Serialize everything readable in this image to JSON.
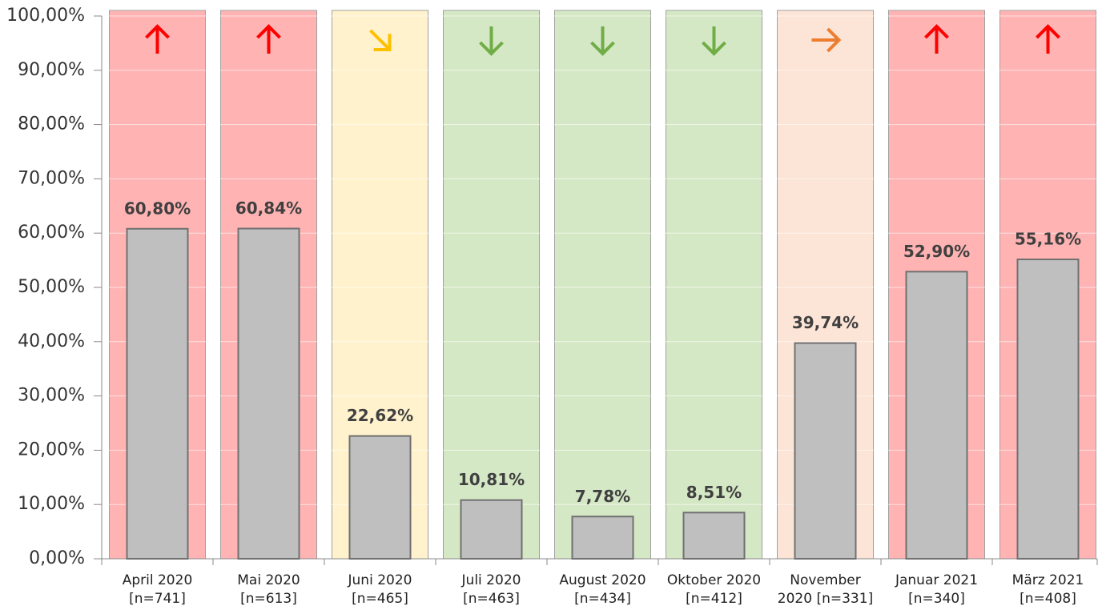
{
  "chart_data": {
    "type": "bar",
    "categories": [
      [
        "April 2020",
        "[n=741]"
      ],
      [
        "Mai 2020",
        "[n=613]"
      ],
      [
        "Juni 2020",
        "[n=465]"
      ],
      [
        "Juli 2020",
        "[n=463]"
      ],
      [
        "August 2020",
        "[n=434]"
      ],
      [
        "Oktober 2020",
        "[n=412]"
      ],
      [
        "November",
        "2020 [n=331]"
      ],
      [
        "Januar 2021",
        "[n=340]"
      ],
      [
        "März 2021",
        "[n=408]"
      ]
    ],
    "values": [
      60.8,
      60.84,
      22.62,
      10.81,
      7.78,
      8.51,
      39.74,
      52.9,
      55.16
    ],
    "value_labels": [
      "60,80%",
      "60,84%",
      "22,62%",
      "10,81%",
      "7,78%",
      "8,51%",
      "39,74%",
      "52,90%",
      "55,16%"
    ],
    "color": "#bfbfbf",
    "band_colors": [
      "#ffb3b3",
      "#ffb3b3",
      "#fff2cc",
      "#d5e8c5",
      "#d5e8c5",
      "#d5e8c5",
      "#fce4d6",
      "#ffb3b3",
      "#ffb3b3"
    ],
    "arrows": [
      "up",
      "up",
      "down-right",
      "down",
      "down",
      "down",
      "right",
      "up",
      "up"
    ],
    "arrow_colors": [
      "#ff0000",
      "#ff0000",
      "#ffc000",
      "#70ad47",
      "#70ad47",
      "#70ad47",
      "#ed7d31",
      "#ff0000",
      "#ff0000"
    ],
    "ylim": [
      0,
      100
    ],
    "yticks": [
      {
        "value": 0,
        "label": "0,00%"
      },
      {
        "value": 10,
        "label": "10,00%"
      },
      {
        "value": 20,
        "label": "20,00%"
      },
      {
        "value": 30,
        "label": "30,00%"
      },
      {
        "value": 40,
        "label": "40,00%"
      },
      {
        "value": 50,
        "label": "50,00%"
      },
      {
        "value": 60,
        "label": "60,00%"
      },
      {
        "value": 70,
        "label": "70,00%"
      },
      {
        "value": 80,
        "label": "80,00%"
      },
      {
        "value": 90,
        "label": "90,00%"
      },
      {
        "value": 100,
        "label": "100,00%"
      }
    ],
    "grid": true
  }
}
